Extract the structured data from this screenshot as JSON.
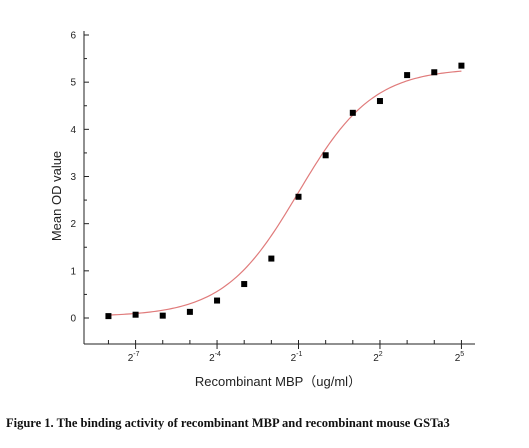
{
  "chart_data": {
    "type": "scatter",
    "title": "",
    "xlabel": "Recombinant  MBP（ug/ml）",
    "ylabel": "Mean OD value",
    "x_scale": "log2",
    "xlim_log2": [
      -8.9,
      5.5
    ],
    "ylim": [
      0,
      6
    ],
    "y_ticks": [
      0,
      1,
      2,
      3,
      4,
      5,
      6
    ],
    "y_tick_labels": [
      "0",
      "1",
      "2",
      "3",
      "4",
      "5",
      "6"
    ],
    "x_tick_labels": [
      {
        "base": "2",
        "exp": "-7",
        "log2": -7
      },
      {
        "base": "2",
        "exp": "-4",
        "log2": -4
      },
      {
        "base": "2",
        "exp": "-1",
        "log2": -1
      },
      {
        "base": "2",
        "exp": "2",
        "log2": 2
      },
      {
        "base": "2",
        "exp": "5",
        "log2": 5
      }
    ],
    "x_minor_ticks_log2": [
      -8,
      -7,
      -6,
      -5,
      -4,
      -3,
      -2,
      -1,
      0,
      1,
      2,
      3,
      4,
      5
    ],
    "grid": false,
    "legend": "none",
    "point_color": "#000000",
    "fit_color": "#e07b7b",
    "points": [
      {
        "x_log2": -8.0,
        "y": 0.04
      },
      {
        "x_log2": -7.0,
        "y": 0.07
      },
      {
        "x_log2": -6.0,
        "y": 0.05
      },
      {
        "x_log2": -5.0,
        "y": 0.13
      },
      {
        "x_log2": -4.0,
        "y": 0.37
      },
      {
        "x_log2": -3.0,
        "y": 0.72
      },
      {
        "x_log2": -2.0,
        "y": 1.26
      },
      {
        "x_log2": -1.0,
        "y": 2.57
      },
      {
        "x_log2": 0.0,
        "y": 3.45
      },
      {
        "x_log2": 1.0,
        "y": 4.35
      },
      {
        "x_log2": 2.0,
        "y": 4.6
      },
      {
        "x_log2": 3.0,
        "y": 5.15
      },
      {
        "x_log2": 4.0,
        "y": 5.21
      },
      {
        "x_log2": 5.0,
        "y": 5.35
      }
    ],
    "fit": {
      "model": "4PL",
      "bottom": 0.03,
      "top": 5.3,
      "center_log2": -1.0,
      "slope": 1.05
    }
  },
  "caption": "Figure 1. The binding activity of recombinant MBP and recombinant mouse GSTa3"
}
